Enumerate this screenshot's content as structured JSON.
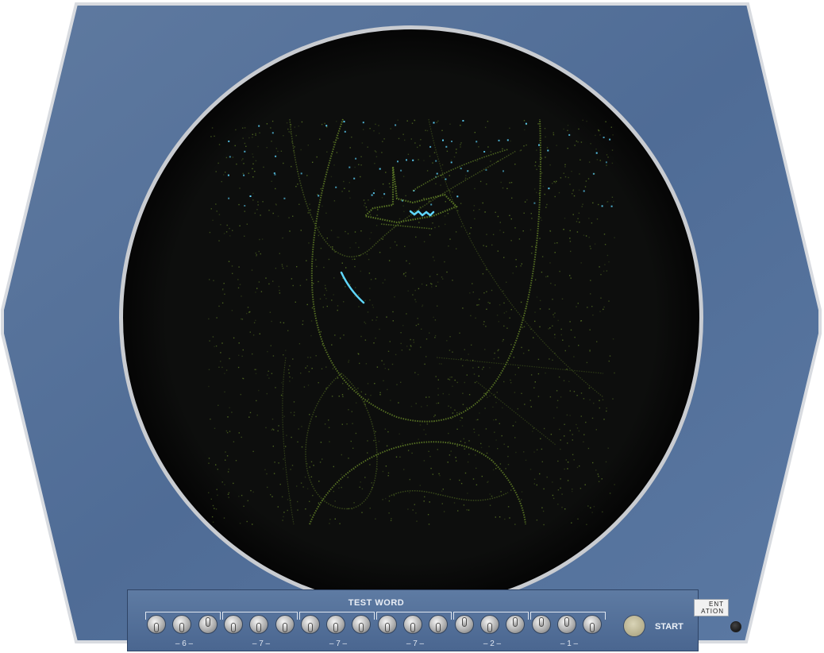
{
  "panel": {
    "title": "TEST WORD",
    "start_label": "START",
    "groups": [
      {
        "label": "– 6 –",
        "switches": [
          "down",
          "down",
          "up"
        ]
      },
      {
        "label": "– 7 –",
        "switches": [
          "down",
          "down",
          "down"
        ]
      },
      {
        "label": "– 7 –",
        "switches": [
          "down",
          "down",
          "down"
        ]
      },
      {
        "label": "– 7 –",
        "switches": [
          "down",
          "down",
          "down"
        ]
      },
      {
        "label": "– 2 –",
        "switches": [
          "up",
          "down",
          "up"
        ]
      },
      {
        "label": "– 1 –",
        "switches": [
          "up",
          "up",
          "down"
        ]
      }
    ]
  },
  "badge": {
    "line1": "ENT",
    "line2": "ATION"
  },
  "colors": {
    "cabinet": "#5a769e",
    "cabinet_edge": "#dcdfe3",
    "screen": "#0c0d0c",
    "phosphor_dim": "#5d7a26",
    "phosphor_bright": "#5fd7ff"
  }
}
